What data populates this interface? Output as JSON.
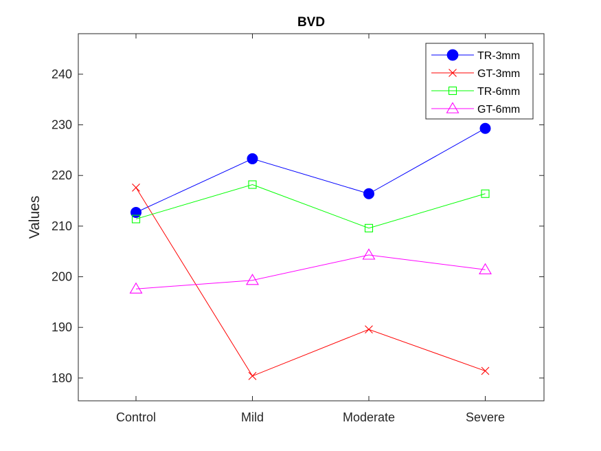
{
  "chart_data": {
    "type": "line",
    "title": "BVD",
    "xlabel": "",
    "ylabel": "Values",
    "categories": [
      "Control",
      "Mild",
      "Moderate",
      "Severe"
    ],
    "ylim": [
      175.5,
      248
    ],
    "yticks": [
      180,
      190,
      200,
      210,
      220,
      230,
      240
    ],
    "grid": false,
    "legend_position": "top-right",
    "series": [
      {
        "name": "TR-3mm",
        "values": [
          212.7,
          223.3,
          216.4,
          229.3
        ],
        "color": "#0000ff",
        "marker": "filled-circle"
      },
      {
        "name": "GT-3mm",
        "values": [
          217.6,
          180.4,
          189.6,
          181.4
        ],
        "color": "#ff0000",
        "marker": "x"
      },
      {
        "name": "TR-6mm",
        "values": [
          211.4,
          218.2,
          209.6,
          216.4
        ],
        "color": "#00ff00",
        "marker": "square"
      },
      {
        "name": "GT-6mm",
        "values": [
          197.6,
          199.3,
          204.3,
          201.4
        ],
        "color": "#ff00ff",
        "marker": "triangle"
      }
    ]
  }
}
